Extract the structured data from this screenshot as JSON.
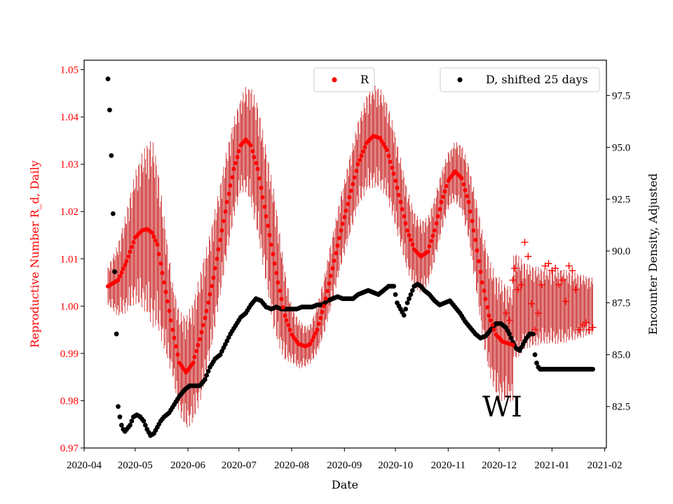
{
  "chart_data": {
    "type": "scatter",
    "title": "",
    "xlabel": "Date",
    "ylabel_left": "Reproductive Number R_d, Daily",
    "ylabel_right": "Encounter Density, Adjusted",
    "state_label": "WI",
    "ylim_left": [
      0.97,
      1.052
    ],
    "ylim_right": [
      80.5,
      99.2
    ],
    "x_range_days": [
      0,
      307
    ],
    "x_ticks": [
      {
        "label": "2020-04",
        "day": 0
      },
      {
        "label": "2020-05",
        "day": 30
      },
      {
        "label": "2020-06",
        "day": 61
      },
      {
        "label": "2020-07",
        "day": 91
      },
      {
        "label": "2020-08",
        "day": 122
      },
      {
        "label": "2020-09",
        "day": 153
      },
      {
        "label": "2020-10",
        "day": 183
      },
      {
        "label": "2020-11",
        "day": 214
      },
      {
        "label": "2020-12",
        "day": 244
      },
      {
        "label": "2021-01",
        "day": 275
      },
      {
        "label": "2021-02",
        "day": 306
      }
    ],
    "y_ticks_left": [
      "0.97",
      "0.98",
      "0.99",
      "1.00",
      "1.01",
      "1.02",
      "1.03",
      "1.04",
      "1.05"
    ],
    "y_ticks_right": [
      "82.5",
      "85.0",
      "87.5",
      "90.0",
      "92.5",
      "95.0",
      "97.5"
    ],
    "legend": [
      {
        "label": "R",
        "color": "#ff0000",
        "position": "top-center"
      },
      {
        "label": "D, shifted 25 days",
        "color": "#000000",
        "position": "top-right"
      }
    ],
    "r_smooth_knots": [
      [
        14,
        1.0042
      ],
      [
        20,
        1.0055
      ],
      [
        25,
        1.0095
      ],
      [
        30,
        1.0145
      ],
      [
        34,
        1.016
      ],
      [
        37,
        1.0163
      ],
      [
        40,
        1.0155
      ],
      [
        43,
        1.013
      ],
      [
        47,
        1.005
      ],
      [
        52,
        0.995
      ],
      [
        56,
        0.988
      ],
      [
        60,
        0.986
      ],
      [
        64,
        0.988
      ],
      [
        68,
        0.993
      ],
      [
        72,
        0.999
      ],
      [
        76,
        1.006
      ],
      [
        80,
        1.014
      ],
      [
        84,
        1.022
      ],
      [
        88,
        1.029
      ],
      [
        92,
        1.034
      ],
      [
        95,
        1.0352
      ],
      [
        98,
        1.034
      ],
      [
        102,
        1.029
      ],
      [
        106,
        1.021
      ],
      [
        110,
        1.013
      ],
      [
        114,
        1.005
      ],
      [
        118,
        0.998
      ],
      [
        122,
        0.994
      ],
      [
        126,
        0.992
      ],
      [
        130,
        0.9915
      ],
      [
        133,
        0.992
      ],
      [
        137,
        0.995
      ],
      [
        141,
        1.0
      ],
      [
        146,
        1.008
      ],
      [
        151,
        1.016
      ],
      [
        156,
        1.023
      ],
      [
        161,
        1.03
      ],
      [
        166,
        1.0345
      ],
      [
        170,
        1.036
      ],
      [
        174,
        1.0355
      ],
      [
        178,
        1.033
      ],
      [
        182,
        1.028
      ],
      [
        186,
        1.022
      ],
      [
        190,
        1.016
      ],
      [
        194,
        1.012
      ],
      [
        198,
        1.0105
      ],
      [
        202,
        1.0115
      ],
      [
        206,
        1.016
      ],
      [
        210,
        1.022
      ],
      [
        214,
        1.0265
      ],
      [
        218,
        1.0285
      ],
      [
        222,
        1.027
      ],
      [
        226,
        1.022
      ],
      [
        230,
        1.014
      ],
      [
        234,
        1.005
      ],
      [
        238,
        0.998
      ],
      [
        242,
        0.994
      ],
      [
        246,
        0.9925
      ],
      [
        250,
        0.992
      ],
      [
        252,
        0.9918
      ]
    ],
    "r_noisy_points": [
      {
        "day": 248,
        "value": 0.9985
      },
      {
        "day": 250,
        "value": 0.997
      },
      {
        "day": 252,
        "value": 1.0055
      },
      {
        "day": 253,
        "value": 1.008
      },
      {
        "day": 255,
        "value": 1.0035
      },
      {
        "day": 257,
        "value": 1.0045
      },
      {
        "day": 259,
        "value": 1.0135
      },
      {
        "day": 261,
        "value": 1.0105
      },
      {
        "day": 263,
        "value": 1.0005
      },
      {
        "day": 265,
        "value": 0.995
      },
      {
        "day": 267,
        "value": 0.9985
      },
      {
        "day": 269,
        "value": 1.0045
      },
      {
        "day": 271,
        "value": 1.0085
      },
      {
        "day": 273,
        "value": 1.009
      },
      {
        "day": 275,
        "value": 1.0075
      },
      {
        "day": 277,
        "value": 1.008
      },
      {
        "day": 279,
        "value": 1.0045
      },
      {
        "day": 281,
        "value": 1.0055
      },
      {
        "day": 283,
        "value": 1.001
      },
      {
        "day": 285,
        "value": 1.0085
      },
      {
        "day": 287,
        "value": 1.0075
      },
      {
        "day": 289,
        "value": 1.0035
      },
      {
        "day": 291,
        "value": 0.995
      },
      {
        "day": 293,
        "value": 0.996
      },
      {
        "day": 295,
        "value": 0.9965
      },
      {
        "day": 297,
        "value": 0.995
      },
      {
        "day": 299,
        "value": 0.9955
      }
    ],
    "r_band_halfwidth": [
      [
        14,
        0.004
      ],
      [
        30,
        0.014
      ],
      [
        40,
        0.02
      ],
      [
        52,
        0.01
      ],
      [
        60,
        0.012
      ],
      [
        70,
        0.014
      ],
      [
        80,
        0.012
      ],
      [
        92,
        0.01
      ],
      [
        102,
        0.014
      ],
      [
        112,
        0.015
      ],
      [
        122,
        0.006
      ],
      [
        132,
        0.004
      ],
      [
        145,
        0.007
      ],
      [
        160,
        0.009
      ],
      [
        170,
        0.011
      ],
      [
        182,
        0.01
      ],
      [
        195,
        0.008
      ],
      [
        205,
        0.007
      ],
      [
        216,
        0.006
      ],
      [
        226,
        0.008
      ],
      [
        236,
        0.012
      ],
      [
        244,
        0.013
      ],
      [
        252,
        0.012
      ],
      [
        260,
        0.009
      ],
      [
        270,
        0.008
      ],
      [
        280,
        0.008
      ],
      [
        290,
        0.007
      ],
      [
        299,
        0.006
      ]
    ],
    "d_knots": [
      [
        14,
        98.3
      ],
      [
        15,
        96.8
      ],
      [
        16,
        94.6
      ],
      [
        17,
        91.8
      ],
      [
        18,
        89.0
      ],
      [
        19,
        86.0
      ],
      [
        20,
        82.5
      ],
      [
        21,
        82.0
      ],
      [
        22,
        81.6
      ],
      [
        23,
        81.4
      ],
      [
        24,
        81.3
      ],
      [
        25,
        81.4
      ],
      [
        27,
        81.6
      ],
      [
        29,
        82.0
      ],
      [
        31,
        82.1
      ],
      [
        33,
        82.0
      ],
      [
        35,
        81.8
      ],
      [
        37,
        81.4
      ],
      [
        39,
        81.1
      ],
      [
        41,
        81.2
      ],
      [
        43,
        81.5
      ],
      [
        45,
        81.8
      ],
      [
        47,
        82.0
      ],
      [
        50,
        82.2
      ],
      [
        53,
        82.6
      ],
      [
        56,
        83.0
      ],
      [
        59,
        83.3
      ],
      [
        62,
        83.5
      ],
      [
        65,
        83.5
      ],
      [
        68,
        83.5
      ],
      [
        71,
        83.8
      ],
      [
        74,
        84.4
      ],
      [
        77,
        84.8
      ],
      [
        80,
        85.0
      ],
      [
        83,
        85.5
      ],
      [
        86,
        86.0
      ],
      [
        89,
        86.4
      ],
      [
        92,
        86.8
      ],
      [
        95,
        87.0
      ],
      [
        98,
        87.4
      ],
      [
        101,
        87.7
      ],
      [
        104,
        87.6
      ],
      [
        107,
        87.3
      ],
      [
        110,
        87.2
      ],
      [
        113,
        87.3
      ],
      [
        116,
        87.2
      ],
      [
        119,
        87.2
      ],
      [
        122,
        87.2
      ],
      [
        125,
        87.2
      ],
      [
        128,
        87.3
      ],
      [
        131,
        87.3
      ],
      [
        134,
        87.3
      ],
      [
        137,
        87.4
      ],
      [
        140,
        87.4
      ],
      [
        143,
        87.6
      ],
      [
        146,
        87.7
      ],
      [
        149,
        87.8
      ],
      [
        152,
        87.7
      ],
      [
        155,
        87.7
      ],
      [
        158,
        87.7
      ],
      [
        161,
        87.9
      ],
      [
        164,
        88.0
      ],
      [
        167,
        88.1
      ],
      [
        170,
        88.0
      ],
      [
        173,
        87.9
      ],
      [
        176,
        88.1
      ],
      [
        179,
        88.3
      ],
      [
        182,
        88.3
      ],
      [
        184,
        87.5
      ],
      [
        186,
        87.2
      ],
      [
        188,
        86.9
      ],
      [
        190,
        87.5
      ],
      [
        192,
        87.9
      ],
      [
        194,
        88.3
      ],
      [
        196,
        88.4
      ],
      [
        198,
        88.3
      ],
      [
        200,
        88.1
      ],
      [
        203,
        87.9
      ],
      [
        206,
        87.6
      ],
      [
        209,
        87.4
      ],
      [
        212,
        87.5
      ],
      [
        215,
        87.6
      ],
      [
        218,
        87.3
      ],
      [
        221,
        87.0
      ],
      [
        224,
        86.6
      ],
      [
        227,
        86.3
      ],
      [
        230,
        86.0
      ],
      [
        233,
        85.8
      ],
      [
        236,
        85.9
      ],
      [
        239,
        86.2
      ],
      [
        242,
        86.5
      ],
      [
        245,
        86.5
      ],
      [
        248,
        86.3
      ],
      [
        250,
        86.0
      ],
      [
        252,
        85.6
      ],
      [
        254,
        85.3
      ],
      [
        256,
        85.2
      ],
      [
        258,
        85.5
      ],
      [
        260,
        85.8
      ],
      [
        262,
        86.0
      ],
      [
        264,
        86.0
      ],
      [
        265,
        85.0
      ],
      [
        266,
        84.6
      ],
      [
        267,
        84.4
      ],
      [
        268,
        84.3
      ],
      [
        270,
        84.3
      ],
      [
        299,
        84.3
      ]
    ]
  }
}
